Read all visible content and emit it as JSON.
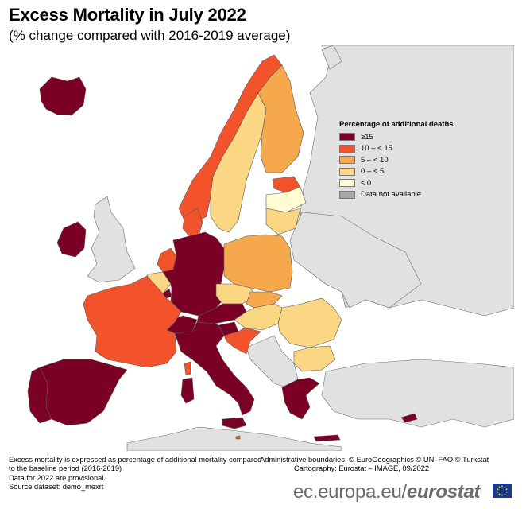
{
  "title": "Excess Mortality in July 2022",
  "subtitle": "(% change compared with 2016-2019 average)",
  "legend": {
    "title": "Percentage of additional deaths",
    "items": [
      {
        "label": "≥15",
        "color": "#7b0025"
      },
      {
        "label": "10 – < 15",
        "color": "#f3532a"
      },
      {
        "label": "5 – < 10",
        "color": "#f5a84c"
      },
      {
        "label": "0 – < 5",
        "color": "#fbd683"
      },
      {
        "label": "≤ 0",
        "color": "#fffbd3"
      },
      {
        "label": "Data not available",
        "color": "#a6a6a6"
      }
    ]
  },
  "map": {
    "background_color": "#e1e1e1",
    "sea_color": "#ffffff",
    "border_color": "#6d6d6d",
    "countries": [
      {
        "name": "Iceland",
        "class": "≥15"
      },
      {
        "name": "Ireland",
        "class": "≥15"
      },
      {
        "name": "Norway",
        "class": "10 – < 15"
      },
      {
        "name": "Sweden",
        "class": "0 – < 5"
      },
      {
        "name": "Finland",
        "class": "5 – < 10"
      },
      {
        "name": "Estonia",
        "class": "10 – < 15"
      },
      {
        "name": "Latvia",
        "class": "≤ 0"
      },
      {
        "name": "Lithuania",
        "class": "0 – < 5"
      },
      {
        "name": "Denmark",
        "class": "10 – < 15"
      },
      {
        "name": "Germany",
        "class": "≥15"
      },
      {
        "name": "Netherlands",
        "class": "10 – < 15"
      },
      {
        "name": "Belgium",
        "class": "0 – < 5"
      },
      {
        "name": "Luxembourg",
        "class": "≥15"
      },
      {
        "name": "France",
        "class": "10 – < 15"
      },
      {
        "name": "Spain",
        "class": "≥15"
      },
      {
        "name": "Portugal",
        "class": "≥15"
      },
      {
        "name": "Italy",
        "class": "≥15"
      },
      {
        "name": "Malta",
        "class": "10 – < 15"
      },
      {
        "name": "Switzerland",
        "class": "≥15"
      },
      {
        "name": "Liechtenstein",
        "class": "≥15"
      },
      {
        "name": "Austria",
        "class": "≥15"
      },
      {
        "name": "Slovenia",
        "class": "≥15"
      },
      {
        "name": "Croatia",
        "class": "10 – < 15"
      },
      {
        "name": "Poland",
        "class": "5 – < 10"
      },
      {
        "name": "Czechia",
        "class": "0 – < 5"
      },
      {
        "name": "Slovakia",
        "class": "5 – < 10"
      },
      {
        "name": "Hungary",
        "class": "0 – < 5"
      },
      {
        "name": "Romania",
        "class": "0 – < 5"
      },
      {
        "name": "Bulgaria",
        "class": "0 – < 5"
      },
      {
        "name": "Greece",
        "class": "≥15"
      },
      {
        "name": "Cyprus",
        "class": "≥15"
      }
    ]
  },
  "footnotes": {
    "left": [
      "Excess mortality is expressed as percentage of additional mortality compared",
      "to the baseline period (2016-2019)",
      "Data for 2022 are provisional.",
      "Source dataset: demo_mexrt"
    ],
    "right": [
      "Administrative boundaries: © EuroGeographics © UN–FAO © Turkstat",
      "Cartography: Eurostat – IMAGE, 09/2022"
    ]
  },
  "brand": {
    "domain": "ec.europa.eu/",
    "name": "eurostat"
  }
}
